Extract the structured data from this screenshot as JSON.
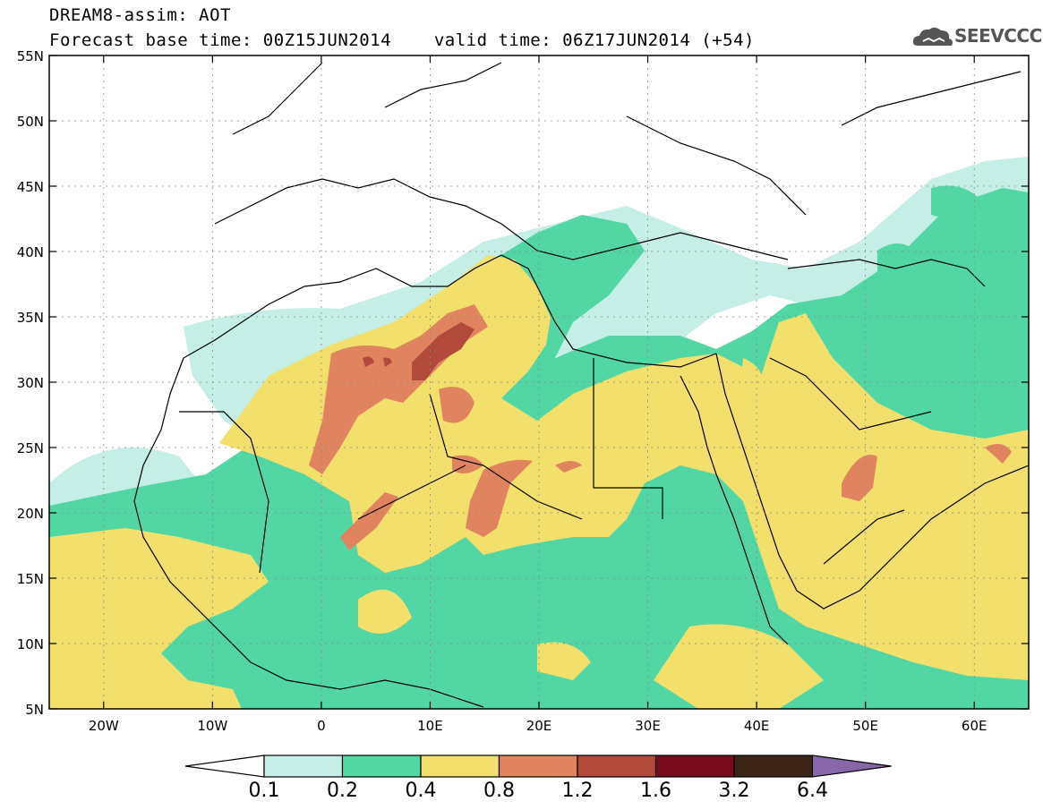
{
  "header": {
    "line1": "DREAM8-assim: AOT",
    "line2_base": "Forecast base time: 00Z15JUN2014",
    "line2_valid": "valid time: 06Z17JUN2014 (+54)",
    "logo_text": "SEEVCCC"
  },
  "map": {
    "lat_labels": [
      "55N",
      "50N",
      "45N",
      "40N",
      "35N",
      "30N",
      "25N",
      "20N",
      "15N",
      "10N",
      "5N"
    ],
    "lon_labels": [
      "20W",
      "10W",
      "0",
      "10E",
      "20E",
      "30E",
      "40E",
      "50E",
      "60E"
    ],
    "field": "Aerosol optical thickness (dust)"
  },
  "colorbar": {
    "labels": [
      "0.1",
      "0.2",
      "0.4",
      "0.8",
      "1.2",
      "1.6",
      "3.2",
      "6.4"
    ],
    "colors": [
      "#ffffff",
      "#c4eee6",
      "#52d6a4",
      "#f2df6c",
      "#e08460",
      "#b14a3b",
      "#7a0a1e",
      "#3c2416",
      "#8866aa"
    ]
  },
  "colors": {
    "level1": "#c4eee6",
    "level2": "#52d6a4",
    "level3": "#f2df6c",
    "level4": "#e08460",
    "level5": "#b14a3b"
  }
}
